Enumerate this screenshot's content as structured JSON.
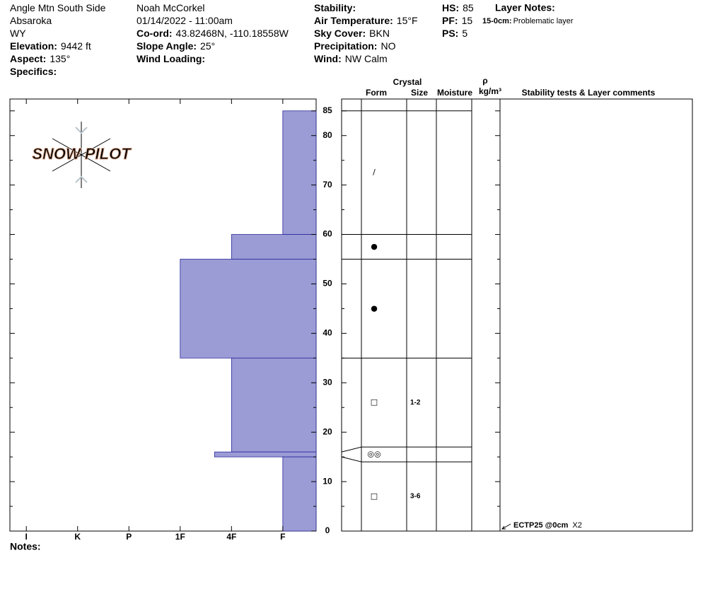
{
  "header": {
    "columns": [
      [
        {
          "value": "Angle Mtn South Side"
        },
        {
          "value": "Absaroka"
        },
        {
          "value": "WY"
        },
        {
          "label": "Elevation:",
          "value": "9442 ft"
        },
        {
          "label": "Aspect:",
          "value": "135°"
        },
        {
          "label": "Specifics:"
        }
      ],
      [
        {
          "value": "Noah McCorkel"
        },
        {
          "value": "01/14/2022 - 11:00am"
        },
        {
          "label": "Co-ord:",
          "value": "43.82468N, -110.18558W"
        },
        {
          "label": "Slope Angle:",
          "value": "25°"
        },
        {
          "label": "Wind Loading:"
        }
      ],
      [
        {
          "label": "Stability:"
        },
        {
          "label": "Air Temperature:",
          "value": "15°F"
        },
        {
          "label": "Sky Cover:",
          "value": "BKN"
        },
        {
          "label": "Precipitation:",
          "value": "NO"
        },
        {
          "label": "Wind:",
          "value": "NW Calm"
        }
      ],
      [
        {
          "label": "HS:",
          "value": "85"
        },
        {
          "label": "PF:",
          "value": "15"
        },
        {
          "label": "PS:",
          "value": "5"
        }
      ]
    ],
    "layer_notes_title": "Layer Notes:",
    "layer_notes": [
      {
        "label": "15-0cm:",
        "value": "Problematic layer"
      }
    ]
  },
  "chart_data": {
    "type": "snow-profile",
    "logo": "SNOW PILOT",
    "color": "#9b9bd6",
    "ylim": [
      0,
      87.4
    ],
    "yticks": [
      0,
      10,
      20,
      30,
      40,
      50,
      60,
      70,
      80,
      85
    ],
    "minor_yticks": [
      5,
      15,
      25,
      35,
      45,
      55,
      65,
      75
    ],
    "xlim": [
      5.32,
      -0.65
    ],
    "xticks": [
      {
        "value": 5,
        "label": "I"
      },
      {
        "value": 4,
        "label": "K"
      },
      {
        "value": 3,
        "label": "P"
      },
      {
        "value": 2,
        "label": "1F"
      },
      {
        "value": 1,
        "label": "4F"
      },
      {
        "value": 0,
        "label": "F"
      }
    ],
    "hardness_layers": [
      {
        "top": 85,
        "bottom": 60,
        "hardness": 0
      },
      {
        "top": 60,
        "bottom": 55,
        "hardness": 1
      },
      {
        "top": 55,
        "bottom": 35,
        "hardness": 2
      },
      {
        "top": 35,
        "bottom": 16,
        "hardness": 1
      },
      {
        "top": 16,
        "bottom": 15,
        "hardness": 1.33
      },
      {
        "top": 15,
        "bottom": 0,
        "hardness": 0
      }
    ],
    "crystal_layers": [
      {
        "top": 85,
        "bottom": 60,
        "form": "/"
      },
      {
        "top": 60,
        "bottom": 55,
        "form": "●"
      },
      {
        "top": 55,
        "bottom": 35,
        "form": "●"
      },
      {
        "top": 35,
        "bottom": 17,
        "form": "□",
        "size": "1-2"
      },
      {
        "top": 17,
        "bottom": 14,
        "form": "◎◎"
      },
      {
        "top": 14,
        "bottom": 0,
        "form": "□",
        "size": "3-6"
      }
    ],
    "headers": {
      "crystal": "Crystal",
      "form": "Form",
      "size": "Size",
      "moisture": "Moisture",
      "density": "ρ",
      "density_unit": "kg/m³",
      "comments": "Stability tests & Layer comments"
    },
    "tests": [
      {
        "depth": 0,
        "result": "ECTP25 @0cm",
        "count": "X2"
      }
    ],
    "notes_label": "Notes:"
  }
}
